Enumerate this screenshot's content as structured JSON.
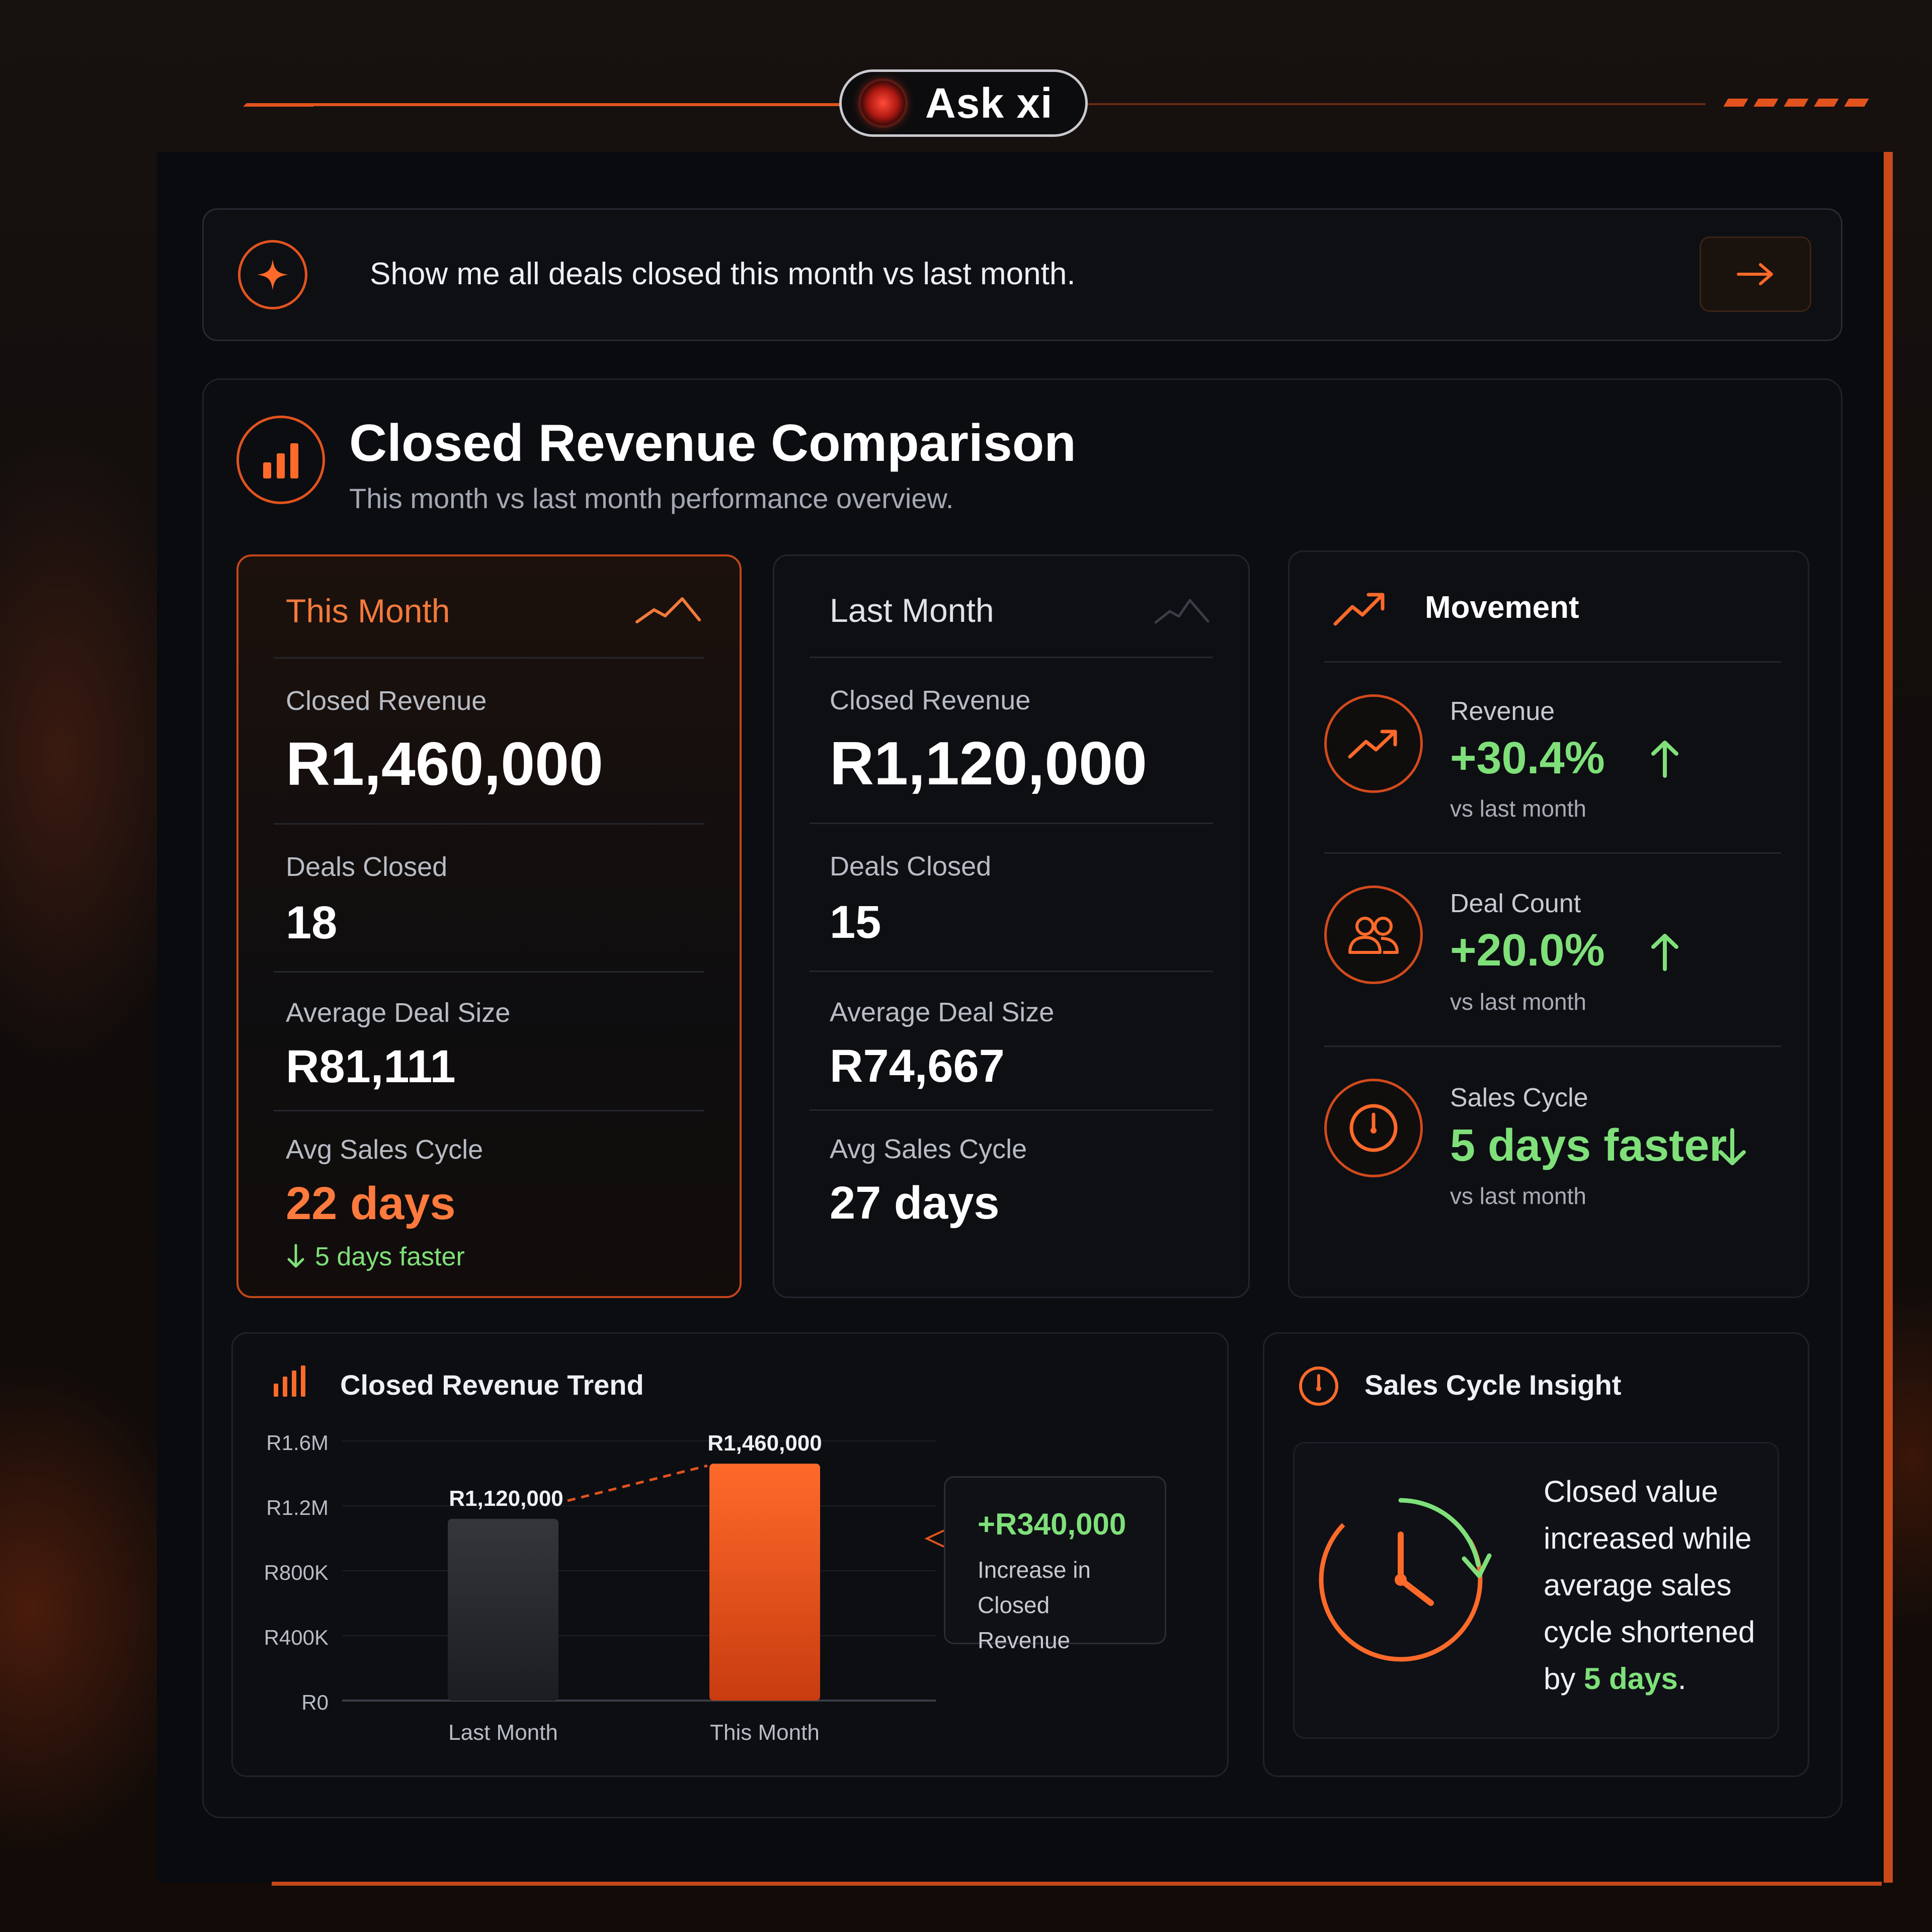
{
  "header": {
    "app_title": "Ask xi"
  },
  "prompt": {
    "query": "Show me all deals closed this month vs last month.",
    "sparkle_icon": "sparkle-icon",
    "send_icon": "arrow-right-icon"
  },
  "report": {
    "title": "Closed Revenue Comparison",
    "subtitle": "This month vs last month performance overview."
  },
  "this_month": {
    "heading": "This Month",
    "closed_revenue_label": "Closed Revenue",
    "closed_revenue": "R1,460,000",
    "deals_label": "Deals Closed",
    "deals": "18",
    "avg_deal_label": "Average Deal Size",
    "avg_deal": "R81,111",
    "cycle_label": "Avg Sales Cycle",
    "cycle": "22 days",
    "cycle_delta": "5 days faster"
  },
  "last_month": {
    "heading": "Last Month",
    "closed_revenue_label": "Closed Revenue",
    "closed_revenue": "R1,120,000",
    "deals_label": "Deals Closed",
    "deals": "15",
    "avg_deal_label": "Average Deal Size",
    "avg_deal": "R74,667",
    "cycle_label": "Avg Sales Cycle",
    "cycle": "27 days"
  },
  "movement": {
    "title": "Movement",
    "items": [
      {
        "label": "Revenue",
        "value": "+30.4%",
        "sub": "vs last month",
        "icon": "trend-up-icon",
        "direction": "up"
      },
      {
        "label": "Deal Count",
        "value": "+20.0%",
        "sub": "vs last month",
        "icon": "users-icon",
        "direction": "up"
      },
      {
        "label": "Sales Cycle",
        "value": "5 days faster",
        "sub": "vs last month",
        "icon": "timer-icon",
        "direction": "down"
      }
    ]
  },
  "trend": {
    "title": "Closed Revenue Trend",
    "increase_value": "+R340,000",
    "increase_label": "Increase in Closed Revenue"
  },
  "chart_data": {
    "type": "bar",
    "title": "Closed Revenue Trend",
    "categories": [
      "Last Month",
      "This Month"
    ],
    "values": [
      1120000,
      1460000
    ],
    "value_labels": [
      "R1,120,000",
      "R1,460,000"
    ],
    "y_ticks": [
      "R0",
      "R400K",
      "R800K",
      "R1.2M",
      "R1.6M"
    ],
    "ylim": [
      0,
      1600000
    ],
    "bar_colors": [
      "#2a2c30",
      "#f0561f"
    ],
    "grid": true
  },
  "insight": {
    "title": "Sales Cycle Insight",
    "text_before": "Closed value increased while average sales cycle shortened by",
    "highlight": "5 days",
    "text_after": "."
  },
  "colors": {
    "accent": "#e2531e",
    "positive": "#7fe07a",
    "panel": "#0b0d11"
  }
}
